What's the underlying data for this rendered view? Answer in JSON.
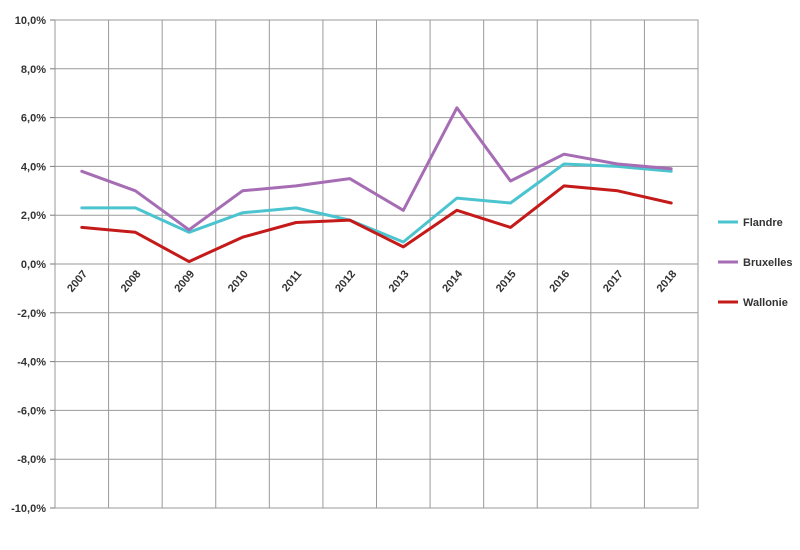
{
  "chart_data": {
    "type": "line",
    "title": "",
    "xlabel": "",
    "ylabel": "",
    "categories": [
      "2007",
      "2008",
      "2009",
      "2010",
      "2011",
      "2012",
      "2013",
      "2014",
      "2015",
      "2016",
      "2017",
      "2018"
    ],
    "ylim": [
      -10,
      10
    ],
    "ytick_values": [
      10,
      8,
      6,
      4,
      2,
      0,
      -2,
      -4,
      -6,
      -8,
      -10
    ],
    "ytick_labels": [
      "10,0%",
      "8,0%",
      "6,0%",
      "4,0%",
      "2,0%",
      "0,0%",
      "-2,0%",
      "-4,0%",
      "-6,0%",
      "-8,0%",
      "-10,0%"
    ],
    "grid": true,
    "legend_position": "right",
    "series": [
      {
        "name": "Flandre",
        "color": "#4BC4CF",
        "values": [
          2.3,
          2.3,
          1.3,
          2.1,
          2.3,
          1.8,
          0.9,
          2.7,
          2.5,
          4.1,
          4.0,
          3.8
        ]
      },
      {
        "name": "Bruxelles",
        "color": "#A66DB5",
        "values": [
          3.8,
          3.0,
          1.4,
          3.0,
          3.2,
          3.5,
          2.2,
          6.4,
          3.4,
          4.5,
          4.1,
          3.9
        ]
      },
      {
        "name": "Wallonie",
        "color": "#C41A1A",
        "values": [
          1.5,
          1.3,
          0.1,
          1.1,
          1.7,
          1.8,
          0.7,
          2.2,
          1.5,
          3.2,
          3.0,
          2.5
        ]
      }
    ]
  }
}
